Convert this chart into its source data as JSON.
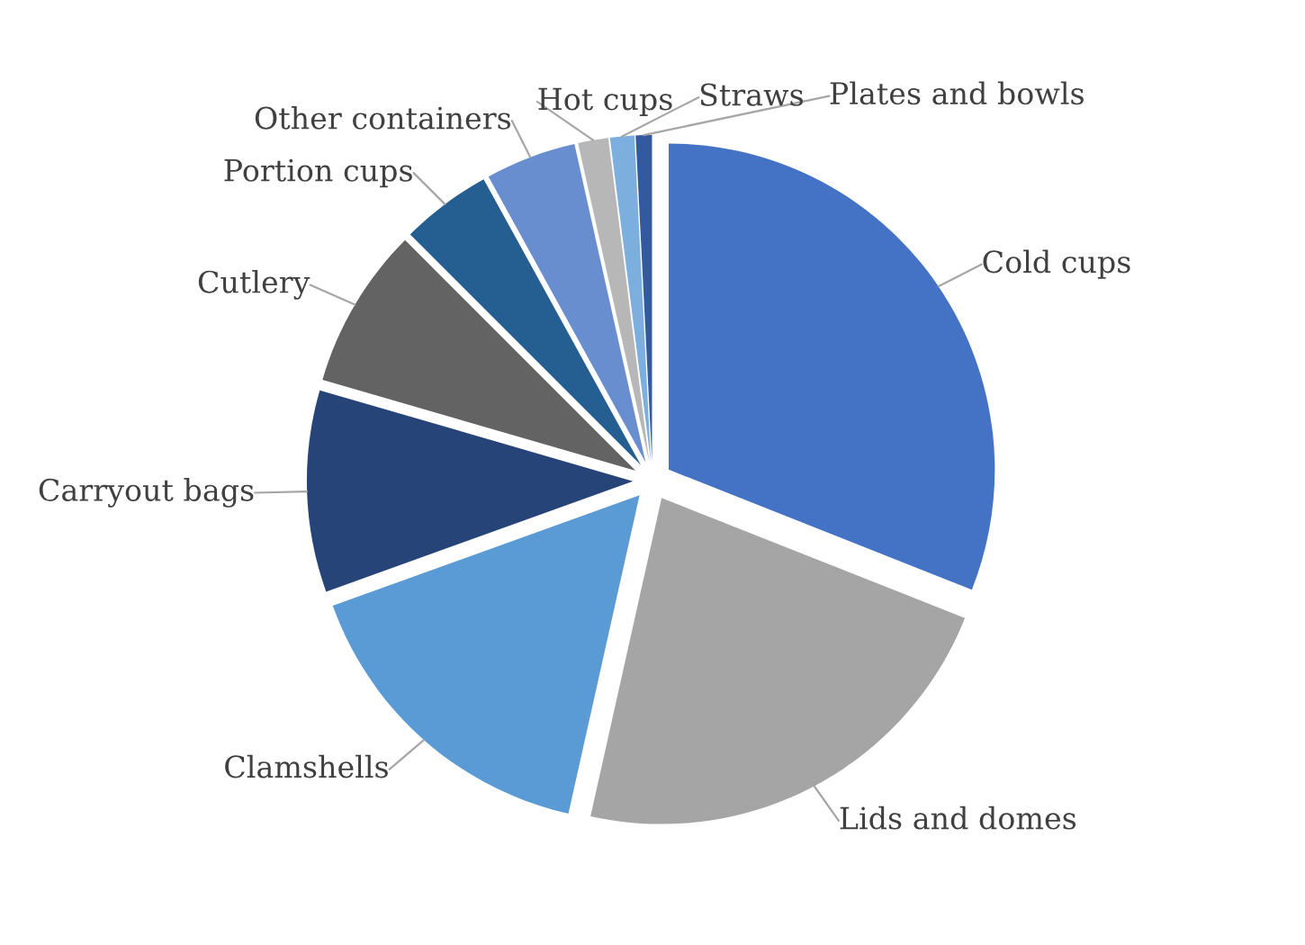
{
  "chart_data": {
    "type": "pie",
    "categories": [
      "Cold cups",
      "Lids and domes",
      "Clamshells",
      "Carryout bags",
      "Cutlery",
      "Portion cups",
      "Other containers",
      "Hot cups",
      "Straws",
      "Plates and bowls"
    ],
    "values": [
      31,
      22.5,
      16,
      10,
      8,
      4.5,
      4.5,
      1.5,
      1.2,
      0.8
    ],
    "colors": [
      "#4472c4",
      "#a5a5a5",
      "#5b9bd5",
      "#264478",
      "#636363",
      "#255e91",
      "#698ed0",
      "#b7b7b7",
      "#7cafdd",
      "#335aa1"
    ],
    "legend": false
  }
}
